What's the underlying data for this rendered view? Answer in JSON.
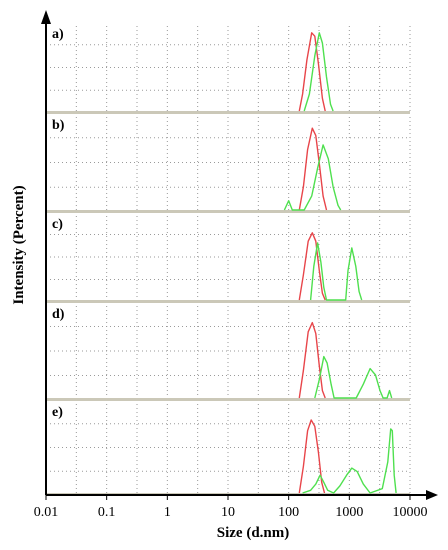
{
  "chart_data": {
    "type": "line",
    "xlabel": "Size (d.nm)",
    "ylabel": "Intensity (Percent)",
    "xscale": "log",
    "xlim": [
      0.01,
      10000
    ],
    "xticks": [
      "0.01",
      "0.1",
      "1",
      "10",
      "100",
      "1000",
      "10000"
    ],
    "grid": true,
    "colors": {
      "red": "#e8454a",
      "green": "#4fe04f",
      "grid": "#9a9a9a",
      "separator": "#cbc8b8"
    },
    "panels": [
      {
        "label": "a)",
        "series": [
          {
            "color": "red",
            "points": [
              [
                150,
                0
              ],
              [
                170,
                20
              ],
              [
                200,
                60
              ],
              [
                240,
                92
              ],
              [
                270,
                88
              ],
              [
                310,
                55
              ],
              [
                360,
                15
              ],
              [
                400,
                0
              ]
            ]
          },
          {
            "color": "green",
            "points": [
              [
                180,
                0
              ],
              [
                220,
                20
              ],
              [
                270,
                65
              ],
              [
                320,
                92
              ],
              [
                360,
                80
              ],
              [
                420,
                40
              ],
              [
                490,
                8
              ],
              [
                540,
                0
              ]
            ]
          }
        ]
      },
      {
        "label": "b)",
        "series": [
          {
            "color": "red",
            "points": [
              [
                150,
                0
              ],
              [
                175,
                25
              ],
              [
                205,
                65
              ],
              [
                245,
                88
              ],
              [
                280,
                80
              ],
              [
                320,
                50
              ],
              [
                370,
                15
              ],
              [
                420,
                0
              ]
            ]
          },
          {
            "color": "green",
            "points": [
              [
                85,
                0
              ],
              [
                100,
                10
              ],
              [
                115,
                0
              ],
              [
                180,
                0
              ],
              [
                240,
                15
              ],
              [
                300,
                45
              ],
              [
                370,
                70
              ],
              [
                450,
                55
              ],
              [
                540,
                25
              ],
              [
                650,
                5
              ],
              [
                720,
                0
              ]
            ]
          }
        ]
      },
      {
        "label": "c)",
        "series": [
          {
            "color": "red",
            "points": [
              [
                150,
                0
              ],
              [
                175,
                30
              ],
              [
                210,
                70
              ],
              [
                245,
                80
              ],
              [
                280,
                70
              ],
              [
                320,
                35
              ],
              [
                360,
                8
              ],
              [
                400,
                0
              ]
            ]
          },
          {
            "color": "green",
            "points": [
              [
                230,
                0
              ],
              [
                260,
                40
              ],
              [
                300,
                68
              ],
              [
                340,
                45
              ],
              [
                380,
                15
              ],
              [
                420,
                0
              ],
              [
                870,
                0
              ],
              [
                950,
                35
              ],
              [
                1100,
                62
              ],
              [
                1280,
                40
              ],
              [
                1450,
                10
              ],
              [
                1600,
                0
              ]
            ]
          }
        ]
      },
      {
        "label": "d)",
        "series": [
          {
            "color": "red",
            "points": [
              [
                150,
                0
              ],
              [
                175,
                30
              ],
              [
                210,
                72
              ],
              [
                245,
                82
              ],
              [
                280,
                70
              ],
              [
                320,
                35
              ],
              [
                360,
                8
              ],
              [
                400,
                0
              ]
            ]
          },
          {
            "color": "green",
            "points": [
              [
                270,
                0
              ],
              [
                320,
                20
              ],
              [
                380,
                45
              ],
              [
                430,
                38
              ],
              [
                500,
                15
              ],
              [
                560,
                0
              ],
              [
                1300,
                0
              ],
              [
                1700,
                15
              ],
              [
                2200,
                32
              ],
              [
                2700,
                25
              ],
              [
                3200,
                8
              ],
              [
                3600,
                0
              ],
              [
                4200,
                0
              ],
              [
                4600,
                8
              ],
              [
                5000,
                0
              ]
            ]
          }
        ]
      },
      {
        "label": "e)",
        "series": [
          {
            "color": "red",
            "points": [
              [
                150,
                0
              ],
              [
                175,
                30
              ],
              [
                205,
                70
              ],
              [
                235,
                82
              ],
              [
                270,
                75
              ],
              [
                310,
                45
              ],
              [
                350,
                12
              ],
              [
                390,
                0
              ]
            ]
          },
          {
            "color": "green",
            "points": [
              [
                170,
                0
              ],
              [
                230,
                3
              ],
              [
                280,
                10
              ],
              [
                330,
                20
              ],
              [
                380,
                12
              ],
              [
                440,
                3
              ],
              [
                550,
                0
              ],
              [
                700,
                8
              ],
              [
                900,
                20
              ],
              [
                1100,
                28
              ],
              [
                1350,
                24
              ],
              [
                1700,
                10
              ],
              [
                2200,
                0
              ],
              [
                3500,
                5
              ],
              [
                4300,
                35
              ],
              [
                4800,
                72
              ],
              [
                5100,
                70
              ],
              [
                5500,
                20
              ],
              [
                5900,
                0
              ]
            ]
          }
        ]
      }
    ]
  }
}
